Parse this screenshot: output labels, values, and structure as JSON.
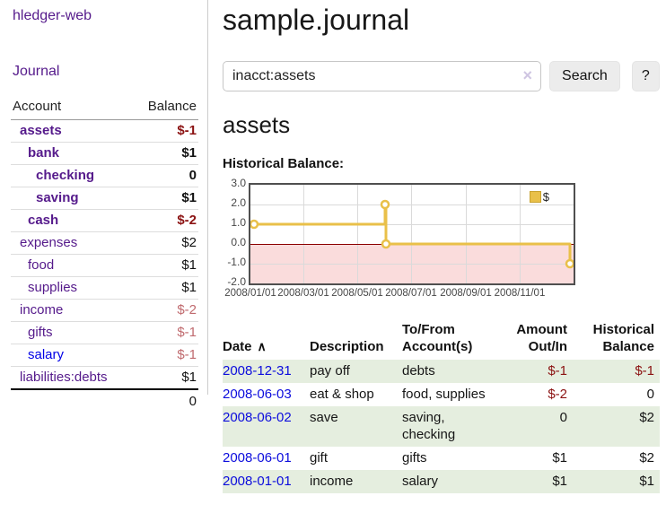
{
  "app": {
    "title": "hledger-web",
    "nav_journal": "Journal"
  },
  "sidebar": {
    "columns": {
      "account": "Account",
      "balance": "Balance"
    },
    "accounts": [
      {
        "name": "assets",
        "level": 1,
        "bold": true,
        "balance": "$-1"
      },
      {
        "name": "bank",
        "level": 2,
        "bold": true,
        "balance": "$1"
      },
      {
        "name": "checking",
        "level": 3,
        "bold": true,
        "balance": "0"
      },
      {
        "name": "saving",
        "level": 3,
        "bold": true,
        "balance": "$1"
      },
      {
        "name": "cash",
        "level": 2,
        "bold": true,
        "balance": "$-2"
      },
      {
        "name": "expenses",
        "level": 1,
        "bold": false,
        "balance": "$2"
      },
      {
        "name": "food",
        "level": 2,
        "bold": false,
        "balance": "$1"
      },
      {
        "name": "supplies",
        "level": 2,
        "bold": false,
        "balance": "$1"
      },
      {
        "name": "income",
        "level": 1,
        "bold": false,
        "balance": "$-2"
      },
      {
        "name": "gifts",
        "level": 2,
        "bold": false,
        "balance": "$-1"
      },
      {
        "name": "salary",
        "level": 2,
        "bold": false,
        "balance": "$-1",
        "blue": true
      },
      {
        "name": "liabilities:debts",
        "level": 1,
        "bold": false,
        "balance": "$1"
      }
    ],
    "total": "0"
  },
  "header": {
    "title": "sample.journal"
  },
  "search": {
    "value": "inacct:assets",
    "clear_icon": "×",
    "button": "Search",
    "help_button": "?"
  },
  "account_page": {
    "heading": "assets",
    "chart_label": "Historical Balance:"
  },
  "chart_data": {
    "type": "line",
    "step": true,
    "title": "Historical Balance:",
    "x": [
      "2008-01-01",
      "2008-06-01",
      "2008-06-03",
      "2008-12-31"
    ],
    "series": [
      {
        "name": "$",
        "values": [
          1,
          2,
          0,
          -1
        ]
      }
    ],
    "xlim": [
      "2008-01-01",
      "2009-01-01"
    ],
    "ylim": [
      -2,
      3
    ],
    "yticks": [
      "3.0",
      "2.0",
      "1.0",
      "0.0",
      "-1.0",
      "-2.0"
    ],
    "xticks": [
      "2008/01/01",
      "2008/03/01",
      "2008/05/01",
      "2008/07/01",
      "2008/09/01",
      "2008/11/01"
    ],
    "grid": true,
    "legend_position": "top-right",
    "line_color": "#e9c049",
    "legend_swatch_border": "#c9a22e",
    "negative_region_fill": "#fadcdc",
    "zero_line_color": "#8b0000"
  },
  "register": {
    "columns": [
      {
        "label": "Date",
        "align": "left",
        "sorted": "asc"
      },
      {
        "label": "Description",
        "align": "left"
      },
      {
        "label": "To/From Account(s)",
        "align": "left"
      },
      {
        "label": "Amount Out/In",
        "align": "right"
      },
      {
        "label": "Historical Balance",
        "align": "right"
      }
    ],
    "rows": [
      {
        "date": "2008-12-31",
        "description": "pay off",
        "accounts": "debts",
        "amount": "$-1",
        "balance": "$-1"
      },
      {
        "date": "2008-06-03",
        "description": "eat & shop",
        "accounts": "food, supplies",
        "amount": "$-2",
        "balance": "0"
      },
      {
        "date": "2008-06-02",
        "description": "save",
        "accounts": "saving, checking",
        "amount": "0",
        "balance": "$2"
      },
      {
        "date": "2008-06-01",
        "description": "gift",
        "accounts": "gifts",
        "amount": "$1",
        "balance": "$2"
      },
      {
        "date": "2008-01-01",
        "description": "income",
        "accounts": "salary",
        "amount": "$1",
        "balance": "$1"
      }
    ]
  }
}
